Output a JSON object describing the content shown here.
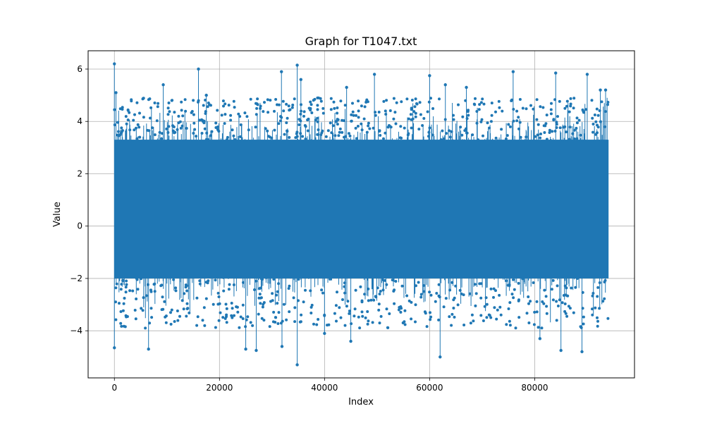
{
  "chart_data": {
    "type": "line",
    "title": "Graph for T1047.txt",
    "xlabel": "Index",
    "ylabel": "Value",
    "xlim": [
      -5000,
      99000
    ],
    "ylim": [
      -5.8,
      6.7
    ],
    "grid": true,
    "series_color": "#1f77b4",
    "x_ticks": [
      {
        "value": 0,
        "label": "0"
      },
      {
        "value": 20000,
        "label": "20000"
      },
      {
        "value": 40000,
        "label": "40000"
      },
      {
        "value": 60000,
        "label": "60000"
      },
      {
        "value": 80000,
        "label": "80000"
      }
    ],
    "y_ticks": [
      {
        "value": -4,
        "label": "−4"
      },
      {
        "value": -2,
        "label": "−2"
      },
      {
        "value": 0,
        "label": "0"
      },
      {
        "value": 2,
        "label": "2"
      },
      {
        "value": 4,
        "label": "4"
      },
      {
        "value": 6,
        "label": "6"
      }
    ],
    "series": [
      {
        "x_start": 0,
        "x_end": 94000,
        "n_points": 94000,
        "band_low": -2.0,
        "band_high": 3.3,
        "highlighted_points": [
          {
            "x": 0,
            "y": 6.2
          },
          {
            "x": 0,
            "y": -4.65
          },
          {
            "x": 300,
            "y": 5.1
          },
          {
            "x": 6500,
            "y": -4.7
          },
          {
            "x": 9300,
            "y": 5.4
          },
          {
            "x": 16000,
            "y": 6.0
          },
          {
            "x": 17500,
            "y": 5.0
          },
          {
            "x": 25000,
            "y": -4.7
          },
          {
            "x": 27000,
            "y": -4.75
          },
          {
            "x": 31800,
            "y": 5.9
          },
          {
            "x": 31900,
            "y": -4.6
          },
          {
            "x": 34800,
            "y": 6.15
          },
          {
            "x": 34800,
            "y": -5.3
          },
          {
            "x": 35500,
            "y": 5.6
          },
          {
            "x": 40000,
            "y": -4.1
          },
          {
            "x": 44200,
            "y": 5.3
          },
          {
            "x": 45000,
            "y": -4.4
          },
          {
            "x": 49500,
            "y": 5.8
          },
          {
            "x": 60000,
            "y": 5.75
          },
          {
            "x": 62000,
            "y": -5.0
          },
          {
            "x": 63000,
            "y": 5.4
          },
          {
            "x": 67000,
            "y": 5.3
          },
          {
            "x": 75900,
            "y": 5.9
          },
          {
            "x": 81000,
            "y": -4.3
          },
          {
            "x": 84000,
            "y": 5.85
          },
          {
            "x": 85000,
            "y": -4.75
          },
          {
            "x": 89000,
            "y": -4.8
          },
          {
            "x": 90000,
            "y": 5.8
          },
          {
            "x": 92500,
            "y": 5.2
          },
          {
            "x": 93500,
            "y": 5.2
          }
        ]
      }
    ]
  }
}
